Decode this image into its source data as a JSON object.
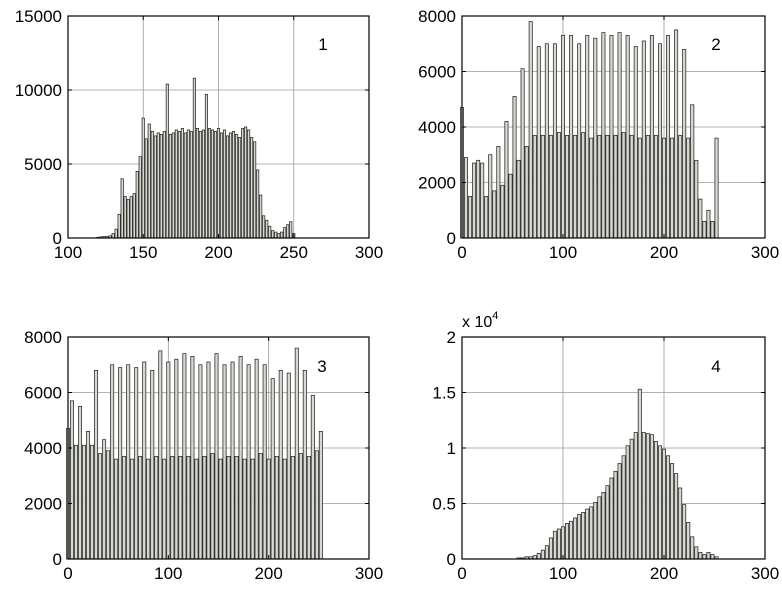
{
  "chart_data": [
    {
      "type": "bar",
      "annotation": "1",
      "xlim": [
        100,
        300
      ],
      "ylim": [
        0,
        15000
      ],
      "xticks": [
        "100",
        "150",
        "200",
        "250",
        "300"
      ],
      "yticks": [
        "0",
        "5000",
        "10000",
        "15000"
      ],
      "grid": true,
      "bar_color": "#d8d8d0",
      "x": [
        120,
        122,
        124,
        126,
        128,
        130,
        132,
        134,
        136,
        138,
        140,
        142,
        144,
        146,
        148,
        150,
        152,
        154,
        156,
        158,
        160,
        162,
        164,
        166,
        168,
        170,
        172,
        174,
        176,
        178,
        180,
        182,
        184,
        186,
        188,
        190,
        192,
        194,
        196,
        198,
        200,
        202,
        204,
        206,
        208,
        210,
        212,
        214,
        216,
        218,
        220,
        222,
        224,
        226,
        228,
        230,
        232,
        234,
        236,
        238,
        240,
        242,
        244,
        246,
        248,
        250
      ],
      "values": [
        50,
        80,
        100,
        100,
        150,
        300,
        600,
        1600,
        4000,
        2800,
        2600,
        2800,
        3000,
        4500,
        5500,
        8100,
        6700,
        7700,
        7200,
        6900,
        7100,
        7000,
        7200,
        10400,
        7000,
        7100,
        7300,
        7200,
        7400,
        7100,
        7300,
        7200,
        10800,
        7400,
        7200,
        7300,
        9700,
        7400,
        7300,
        7200,
        7400,
        7100,
        7300,
        6900,
        7100,
        7200,
        7000,
        6800,
        7400,
        7500,
        7300,
        6800,
        6500,
        4600,
        2900,
        1500,
        1200,
        800,
        500,
        400,
        300,
        400,
        700,
        900,
        1100,
        300
      ]
    },
    {
      "type": "bar",
      "annotation": "2",
      "xlim": [
        0,
        300
      ],
      "ylim": [
        0,
        8000
      ],
      "xticks": [
        "0",
        "100",
        "200",
        "300"
      ],
      "yticks": [
        "0",
        "2000",
        "4000",
        "6000",
        "8000"
      ],
      "grid": true,
      "bar_color": "#d8d8d0",
      "x": [
        0,
        4,
        8,
        12,
        16,
        20,
        24,
        28,
        32,
        36,
        40,
        44,
        48,
        52,
        56,
        60,
        64,
        68,
        72,
        76,
        80,
        84,
        88,
        92,
        96,
        100,
        104,
        108,
        112,
        116,
        120,
        124,
        128,
        132,
        136,
        140,
        144,
        148,
        152,
        156,
        160,
        164,
        168,
        172,
        176,
        180,
        184,
        188,
        192,
        196,
        200,
        204,
        208,
        212,
        216,
        220,
        224,
        228,
        232,
        236,
        240,
        244,
        248,
        252
      ],
      "values": [
        4700,
        2900,
        1500,
        2700,
        2800,
        2700,
        1500,
        3000,
        1700,
        3300,
        1900,
        4200,
        2300,
        5100,
        2800,
        6100,
        3300,
        7800,
        3700,
        6900,
        3700,
        7000,
        3700,
        7000,
        3800,
        7300,
        3700,
        7300,
        3700,
        7000,
        3800,
        7300,
        3600,
        7200,
        3700,
        7400,
        3700,
        7300,
        3700,
        7400,
        3800,
        7300,
        3700,
        6900,
        3600,
        7100,
        3700,
        7300,
        3700,
        7000,
        3600,
        7300,
        3600,
        7500,
        3700,
        6800,
        3600,
        4800,
        2800,
        1400,
        600,
        1000,
        600,
        3600
      ]
    },
    {
      "type": "bar",
      "annotation": "3",
      "xlim": [
        0,
        300
      ],
      "ylim": [
        0,
        8000
      ],
      "xticks": [
        "0",
        "100",
        "200",
        "300"
      ],
      "yticks": [
        "0",
        "2000",
        "4000",
        "6000",
        "8000"
      ],
      "grid": true,
      "bar_color": "#d8d8d0",
      "x": [
        0,
        4,
        8,
        12,
        16,
        20,
        24,
        28,
        32,
        36,
        40,
        44,
        48,
        52,
        56,
        60,
        64,
        68,
        72,
        76,
        80,
        84,
        88,
        92,
        96,
        100,
        104,
        108,
        112,
        116,
        120,
        124,
        128,
        132,
        136,
        140,
        144,
        148,
        152,
        156,
        160,
        164,
        168,
        172,
        176,
        180,
        184,
        188,
        192,
        196,
        200,
        204,
        208,
        212,
        216,
        220,
        224,
        228,
        232,
        236,
        240,
        244,
        248,
        252
      ],
      "values": [
        4700,
        5700,
        4100,
        5500,
        4100,
        4600,
        4100,
        6800,
        3800,
        4300,
        3900,
        7000,
        3600,
        6900,
        3700,
        7000,
        3600,
        6900,
        3700,
        7100,
        3600,
        6800,
        3700,
        7500,
        3600,
        7100,
        3700,
        7200,
        3700,
        7400,
        3700,
        7300,
        3600,
        7000,
        3700,
        7100,
        3800,
        7400,
        3600,
        7000,
        3700,
        7100,
        3700,
        7300,
        3600,
        7000,
        3600,
        7200,
        3800,
        7000,
        3600,
        6500,
        3700,
        6800,
        3600,
        6700,
        3700,
        7600,
        3800,
        6800,
        3700,
        5900,
        3900,
        4600
      ]
    },
    {
      "type": "bar",
      "annotation": "4",
      "multiplier": "x 10",
      "multiplier_exp": "4",
      "xlim": [
        0,
        300
      ],
      "ylim": [
        0,
        2
      ],
      "xticks": [
        "0",
        "100",
        "200",
        "300"
      ],
      "yticks": [
        "0",
        "0.5",
        "1",
        "1.5",
        "2"
      ],
      "grid": true,
      "bar_color": "#d8d8d0",
      "x": [
        56,
        60,
        64,
        68,
        72,
        76,
        80,
        84,
        88,
        92,
        96,
        100,
        104,
        108,
        112,
        116,
        120,
        124,
        128,
        132,
        136,
        140,
        144,
        148,
        152,
        156,
        160,
        164,
        168,
        172,
        176,
        180,
        184,
        188,
        192,
        196,
        200,
        204,
        208,
        212,
        216,
        220,
        224,
        228,
        232,
        236,
        240,
        244,
        248,
        252
      ],
      "values": [
        0.01,
        0.01,
        0.02,
        0.02,
        0.03,
        0.05,
        0.08,
        0.12,
        0.19,
        0.25,
        0.27,
        0.29,
        0.32,
        0.34,
        0.37,
        0.4,
        0.42,
        0.45,
        0.47,
        0.51,
        0.56,
        0.6,
        0.66,
        0.73,
        0.79,
        0.86,
        0.93,
        1.02,
        1.08,
        1.14,
        1.53,
        1.14,
        1.13,
        1.12,
        1.06,
        1.02,
        0.99,
        0.93,
        0.86,
        0.77,
        0.64,
        0.49,
        0.33,
        0.2,
        0.11,
        0.06,
        0.04,
        0.06,
        0.04,
        0.02
      ]
    }
  ]
}
